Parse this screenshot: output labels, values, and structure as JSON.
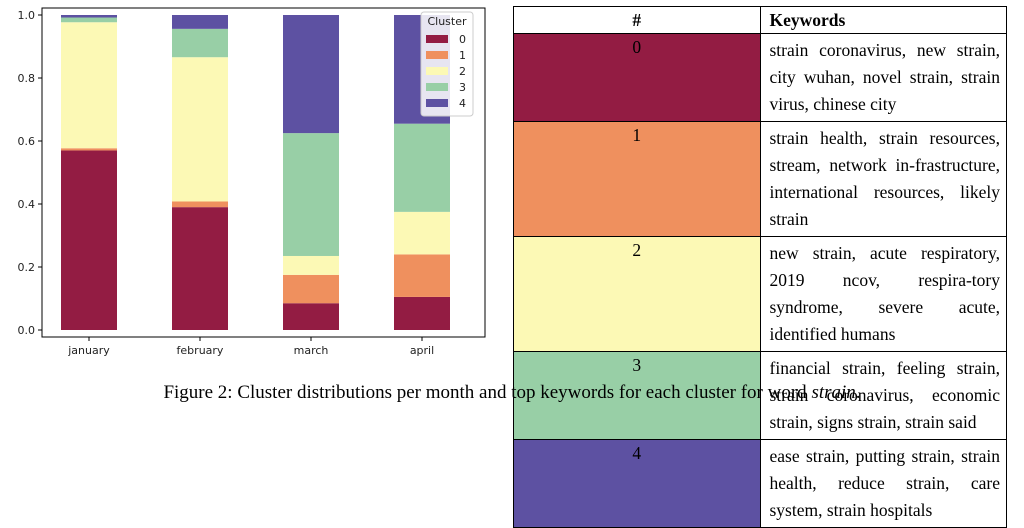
{
  "chart_data": {
    "type": "bar",
    "stacked": true,
    "categories": [
      "january",
      "february",
      "march",
      "april"
    ],
    "series": [
      {
        "name": "0",
        "color": "#931c43",
        "values": [
          0.57,
          0.39,
          0.085,
          0.105
        ]
      },
      {
        "name": "1",
        "color": "#ef905e",
        "values": [
          0.007,
          0.018,
          0.09,
          0.135
        ]
      },
      {
        "name": "2",
        "color": "#fcf9b5",
        "values": [
          0.4,
          0.458,
          0.06,
          0.135
        ]
      },
      {
        "name": "3",
        "color": "#98cfa6",
        "values": [
          0.015,
          0.09,
          0.39,
          0.28
        ]
      },
      {
        "name": "4",
        "color": "#5d51a2",
        "values": [
          0.008,
          0.044,
          0.375,
          0.345
        ]
      }
    ],
    "ylim": [
      0,
      1.0
    ],
    "yticks": [
      "0.0",
      "0.2",
      "0.4",
      "0.6",
      "0.8",
      "1.0"
    ],
    "legend": {
      "title": "Cluster",
      "position": "top-right"
    }
  },
  "table": {
    "header": {
      "num": "#",
      "keywords": "Keywords"
    },
    "rows": [
      {
        "num": "0",
        "color": "#931c43",
        "keywords": "strain coronavirus, new strain, city wuhan, novel strain, strain virus, chinese city"
      },
      {
        "num": "1",
        "color": "#ef905e",
        "keywords": "strain health, strain resources, stream, network in-frastructure, international resources, likely strain"
      },
      {
        "num": "2",
        "color": "#fcf9b5",
        "keywords": "new strain, acute respiratory, 2019 ncov, respira-tory syndrome, severe acute, identified humans"
      },
      {
        "num": "3",
        "color": "#98cfa6",
        "keywords": "financial strain, feeling strain, strain coronavirus, economic strain, signs strain, strain said"
      },
      {
        "num": "4",
        "color": "#5d51a2",
        "keywords": "ease strain, putting strain, strain health, reduce strain, care system, strain hospitals"
      }
    ]
  },
  "caption": {
    "prefix": "Figure 2: Cluster distributions per month and top keywords for each cluster for word ",
    "word": "strain",
    "suffix": "."
  }
}
